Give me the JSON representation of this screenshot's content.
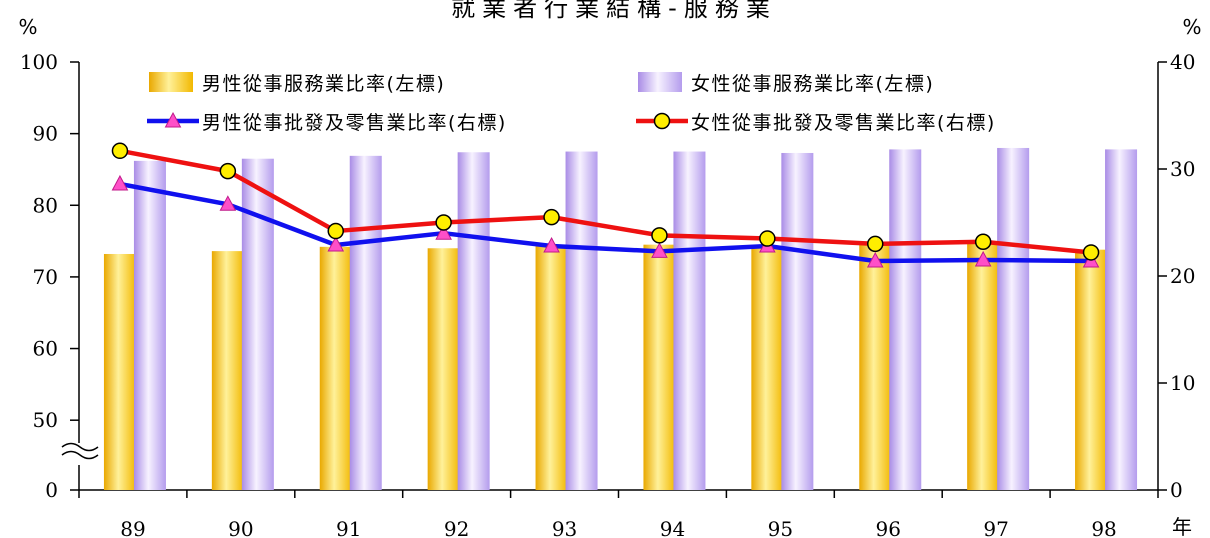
{
  "chart_data": {
    "type": "bar",
    "title": "就業者行業結構-服務業",
    "xlabel": "年",
    "ylabel_left": "%",
    "ylabel_right": "%",
    "categories": [
      "89",
      "90",
      "91",
      "92",
      "93",
      "94",
      "95",
      "96",
      "97",
      "98"
    ],
    "left_axis": {
      "ticks": [
        "0",
        "50",
        "60",
        "70",
        "80",
        "90",
        "100"
      ],
      "visible_range": [
        45,
        100
      ],
      "broken_below": 45
    },
    "right_axis": {
      "ticks": [
        "0",
        "10",
        "20",
        "30",
        "40"
      ],
      "range": [
        0,
        40
      ]
    },
    "series": [
      {
        "name": "男性從事服務業比率(左標)",
        "kind": "bar",
        "axis": "left",
        "color": "#f5c400",
        "values": [
          73.2,
          73.6,
          74.2,
          74.0,
          74.4,
          74.5,
          74.2,
          74.5,
          74.8,
          73.8
        ]
      },
      {
        "name": "女性從事服務業比率(左標)",
        "kind": "bar",
        "axis": "left",
        "color": "#b9a1ea",
        "values": [
          86.2,
          86.5,
          86.9,
          87.4,
          87.5,
          87.5,
          87.3,
          87.8,
          88.0,
          87.8
        ]
      },
      {
        "name": "男性從事批發及零售業比率(右標)",
        "kind": "line",
        "axis": "right",
        "color": "#1010ee",
        "marker": "triangle",
        "marker_color": "#ff4fc8",
        "values": [
          28.6,
          26.7,
          22.9,
          24.0,
          22.8,
          22.3,
          22.8,
          21.4,
          21.5,
          21.4
        ]
      },
      {
        "name": "女性從事批發及零售業比率(右標)",
        "kind": "line",
        "axis": "right",
        "color": "#ee1111",
        "marker": "circle",
        "marker_color": "#ffee00",
        "values": [
          31.7,
          29.8,
          24.2,
          25.0,
          25.5,
          23.8,
          23.5,
          23.0,
          23.2,
          22.2
        ]
      }
    ]
  }
}
